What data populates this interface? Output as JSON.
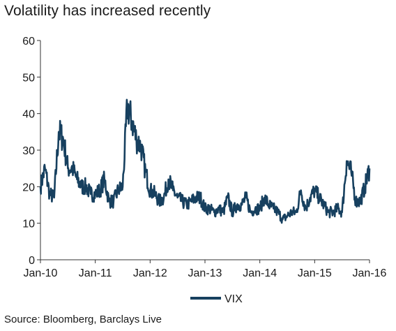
{
  "chart_data": {
    "type": "line",
    "title": "Volatility has increased recently",
    "source": "Source: Bloomberg, Barclays Live",
    "xlabel": "",
    "ylabel": "",
    "ylim": [
      0,
      60
    ],
    "y_ticks": [
      "0",
      "10",
      "20",
      "30",
      "40",
      "50",
      "60"
    ],
    "x_ticks": [
      "Jan-10",
      "Jan-11",
      "Jan-12",
      "Jan-13",
      "Jan-14",
      "Jan-15",
      "Jan-16"
    ],
    "grid": false,
    "legend_position": "bottom",
    "series": [
      {
        "name": "VIX",
        "color": "#17405f",
        "x": [
          "2010-01",
          "2010-02",
          "2010-03",
          "2010-04",
          "2010-05",
          "2010-06",
          "2010-07",
          "2010-08",
          "2010-09",
          "2010-10",
          "2010-11",
          "2010-12",
          "2011-01",
          "2011-02",
          "2011-03",
          "2011-04",
          "2011-05",
          "2011-06",
          "2011-07",
          "2011-08",
          "2011-09",
          "2011-10",
          "2011-11",
          "2011-12",
          "2012-01",
          "2012-02",
          "2012-03",
          "2012-04",
          "2012-05",
          "2012-06",
          "2012-07",
          "2012-08",
          "2012-09",
          "2012-10",
          "2012-11",
          "2012-12",
          "2013-01",
          "2013-02",
          "2013-03",
          "2013-04",
          "2013-05",
          "2013-06",
          "2013-07",
          "2013-08",
          "2013-09",
          "2013-10",
          "2013-11",
          "2013-12",
          "2014-01",
          "2014-02",
          "2014-03",
          "2014-04",
          "2014-05",
          "2014-06",
          "2014-07",
          "2014-08",
          "2014-09",
          "2014-10",
          "2014-11",
          "2014-12",
          "2015-01",
          "2015-02",
          "2015-03",
          "2015-04",
          "2015-05",
          "2015-06",
          "2015-07",
          "2015-08",
          "2015-09",
          "2015-10",
          "2015-11",
          "2015-12",
          "2016-01"
        ],
        "values": [
          20,
          25,
          18,
          17,
          35,
          33,
          25,
          25,
          22,
          20,
          20,
          18,
          18,
          19,
          22,
          16,
          16,
          19,
          20,
          42,
          38,
          33,
          31,
          24,
          19,
          18,
          16,
          17,
          22,
          19,
          17,
          16,
          15,
          16,
          17,
          17,
          14,
          14,
          13,
          14,
          13,
          17,
          13,
          15,
          15,
          17,
          13,
          14,
          14,
          17,
          15,
          14,
          13,
          11,
          12,
          13,
          13,
          19,
          14,
          17,
          19,
          17,
          15,
          13,
          13,
          14,
          13,
          27,
          24,
          16,
          16,
          20,
          25
        ]
      }
    ]
  }
}
